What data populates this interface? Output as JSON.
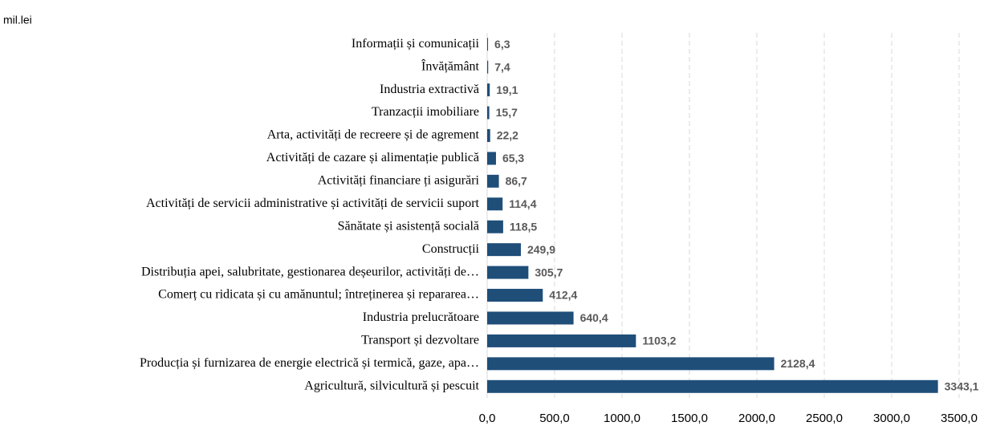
{
  "chart_data": {
    "type": "bar",
    "orientation": "horizontal",
    "axis_label": "mil.lei",
    "categories": [
      "Informații și comunicații",
      "Învățământ",
      "Industria extractivă",
      "Tranzacții imobiliare",
      "Arta, activități de recreere și de agrement",
      "Activități de cazare și alimentație publică",
      "Activități financiare ți asigurări",
      "Activități de servicii administrative și activități de servicii suport",
      "Sănătate și asistență socială",
      "Construcții",
      "Distribuția apei, salubritate, gestionarea deșeurilor, activități de…",
      "Comerț cu ridicata și cu amănuntul; întreținerea și repararea…",
      "Industria prelucrătoare",
      "Transport și dezvoltare",
      "Producția și furnizarea de energie electrică și termică, gaze, apa…",
      "Agricultură, silvicultură și pescuit"
    ],
    "values": [
      6.3,
      7.4,
      19.1,
      15.7,
      22.2,
      65.3,
      86.7,
      114.4,
      118.5,
      249.9,
      305.7,
      412.4,
      640.4,
      1103.2,
      2128.4,
      3343.1
    ],
    "value_labels": [
      "6,3",
      "7,4",
      "19,1",
      "15,7",
      "22,2",
      "65,3",
      "86,7",
      "114,4",
      "118,5",
      "249,9",
      "305,7",
      "412,4",
      "640,4",
      "1103,2",
      "2128,4",
      "3343,1"
    ],
    "color": "#1f4e79",
    "xlim": [
      0,
      3500
    ],
    "xticks": [
      {
        "value": 0,
        "label": "0,0"
      },
      {
        "value": 500,
        "label": "500,0"
      },
      {
        "value": 1000,
        "label": "1000,0"
      },
      {
        "value": 1500,
        "label": "1500,0"
      },
      {
        "value": 2000,
        "label": "2000,0"
      },
      {
        "value": 2500,
        "label": "2500,0"
      },
      {
        "value": 3000,
        "label": "3000,0"
      },
      {
        "value": 3500,
        "label": "3500,0"
      }
    ],
    "grid": true
  }
}
